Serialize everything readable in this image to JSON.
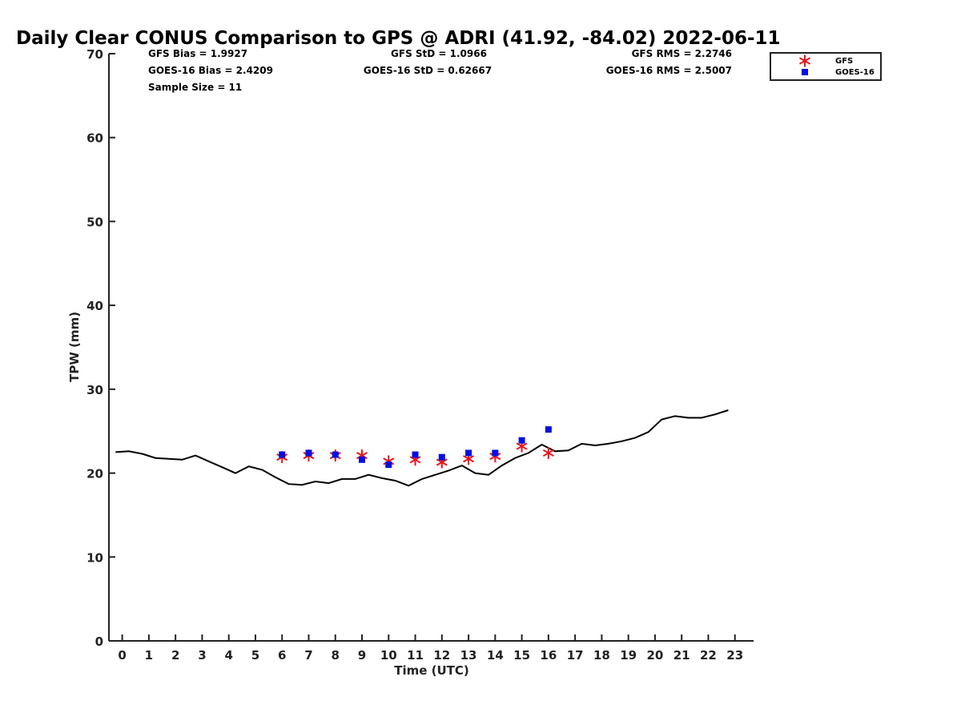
{
  "chart_data": {
    "type": "line",
    "title": "Daily Clear CONUS Comparison to GPS @ ADRI (41.92, -84.02) 2022-06-11",
    "xlabel": "Time (UTC)",
    "ylabel": "TPW (mm)",
    "xlim": [
      -0.5,
      23.7
    ],
    "ylim": [
      0,
      70
    ],
    "xticks": [
      0,
      1,
      2,
      3,
      4,
      5,
      6,
      7,
      8,
      9,
      10,
      11,
      12,
      13,
      14,
      15,
      16,
      17,
      18,
      19,
      20,
      21,
      22,
      23
    ],
    "yticks": [
      0,
      10,
      20,
      30,
      40,
      50,
      60,
      70
    ],
    "legend_position": "top-right",
    "stats": {
      "gfs_bias": "GFS Bias = 1.9927",
      "goes_bias": "GOES-16 Bias = 2.4209",
      "sample_size": "Sample Size = 11",
      "gfs_std": "GFS StD = 1.0966",
      "goes_std": "GOES-16 StD = 0.62667",
      "gfs_rms": "GFS RMS = 2.2746",
      "goes_rms": "GOES-16 RMS = 2.5007"
    },
    "series": [
      {
        "marker": "line",
        "color": "#000000",
        "x": [
          -0.25,
          0.25,
          0.75,
          1.25,
          1.75,
          2.25,
          2.75,
          3.25,
          3.75,
          4.25,
          4.75,
          5.25,
          5.75,
          6.25,
          6.75,
          7.25,
          7.75,
          8.25,
          8.75,
          9.25,
          9.75,
          10.25,
          10.75,
          11.25,
          11.75,
          12.25,
          12.75,
          13.25,
          13.75,
          14.25,
          14.75,
          15.25,
          15.75,
          16.25,
          16.75,
          17.25,
          17.75,
          18.25,
          18.75,
          19.25,
          19.75,
          20.25,
          20.75,
          21.25,
          21.75,
          22.25,
          22.75
        ],
        "y": [
          22.5,
          22.6,
          22.3,
          21.8,
          21.7,
          21.6,
          22.1,
          21.4,
          20.7,
          20.0,
          20.8,
          20.4,
          19.5,
          18.7,
          18.6,
          19.0,
          18.8,
          19.3,
          19.3,
          19.8,
          19.4,
          19.1,
          18.5,
          19.3,
          19.8,
          20.3,
          20.9,
          20.0,
          19.8,
          20.9,
          21.8,
          22.4,
          23.4,
          22.6,
          22.7,
          23.5,
          23.3,
          23.5,
          23.8,
          24.2,
          24.9,
          26.4,
          26.8,
          26.6,
          26.6,
          27.0,
          27.5
        ]
      },
      {
        "name": "GFS",
        "marker": "asterisk",
        "color": "#e8141b",
        "x": [
          6,
          7,
          8,
          9,
          10,
          11,
          12,
          13,
          14,
          15,
          16
        ],
        "y": [
          21.9,
          22.1,
          22.1,
          22.1,
          21.4,
          21.6,
          21.3,
          21.7,
          22.0,
          23.2,
          22.4
        ]
      },
      {
        "name": "GOES-16",
        "marker": "square",
        "color": "#0010e0",
        "x": [
          6,
          7,
          8,
          9,
          10,
          11,
          12,
          13,
          14,
          15,
          16
        ],
        "y": [
          22.2,
          22.4,
          22.2,
          21.6,
          21.0,
          22.2,
          21.9,
          22.4,
          22.4,
          23.9,
          25.2
        ]
      }
    ]
  }
}
